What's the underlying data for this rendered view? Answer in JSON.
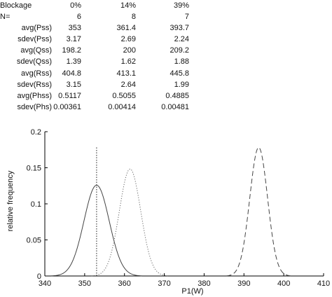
{
  "stats_table": {
    "rows": [
      {
        "label": "Blockage",
        "values": [
          "0%",
          "14%",
          "39%"
        ]
      },
      {
        "label": "N=",
        "values": [
          "6",
          "8",
          "7"
        ]
      },
      {
        "label": "avg(Pss)",
        "values": [
          "353",
          "361.4",
          "393.7"
        ]
      },
      {
        "label": "sdev(Pss)",
        "values": [
          "3.17",
          "2.69",
          "2.24"
        ]
      },
      {
        "label": "avg(Qss)",
        "values": [
          "198.2",
          "200",
          "209.2"
        ]
      },
      {
        "label": "sdev(Qss)",
        "values": [
          "1.39",
          "1.62",
          "1.88"
        ]
      },
      {
        "label": "avg(Rss)",
        "values": [
          "404.8",
          "413.1",
          "445.8"
        ]
      },
      {
        "label": "sdev(Rss)",
        "values": [
          "3.15",
          "2.64",
          "1.99"
        ]
      },
      {
        "label": "avg(Phss)",
        "values": [
          "0.5117",
          "0.5055",
          "0.4885"
        ]
      },
      {
        "label": "sdev(Phs)",
        "values": [
          "0.00361",
          "0.00414",
          "0.00481"
        ]
      }
    ]
  },
  "chart_data": {
    "type": "line",
    "title": "",
    "xlabel": "P1(W)",
    "ylabel": "relative frequency",
    "xlim": [
      340,
      410
    ],
    "ylim": [
      0,
      0.2
    ],
    "xticks": [
      "340",
      "350",
      "360",
      "370",
      "380",
      "390",
      "400",
      "410"
    ],
    "yticks": [
      "0",
      "0.05",
      "0.1",
      "0.15",
      "0.2"
    ],
    "series": [
      {
        "mean": 353,
        "sd": 3.17,
        "style": "solid",
        "color": "#444444"
      },
      {
        "mean": 361.4,
        "sd": 2.69,
        "style": "dotted",
        "color": "#666666"
      },
      {
        "mean": 393.7,
        "sd": 2.24,
        "style": "dashed",
        "color": "#444444"
      }
    ],
    "vertical_line": {
      "x": 353,
      "style": "dotted"
    }
  }
}
